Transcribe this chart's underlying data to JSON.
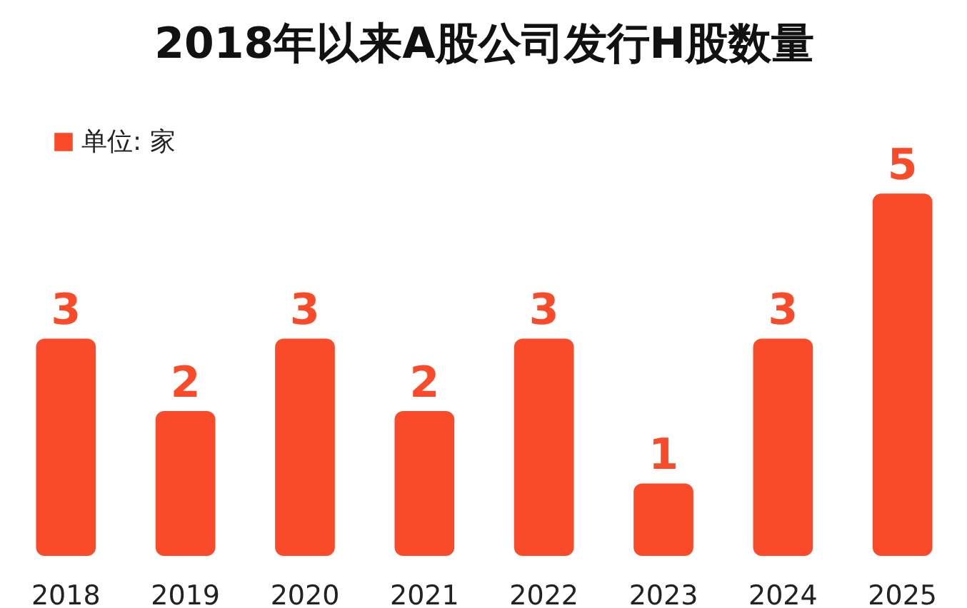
{
  "chart_data": {
    "type": "bar",
    "title": "2018年以来A股公司发行H股数量",
    "categories": [
      "2018",
      "2019",
      "2020",
      "2021",
      "2022",
      "2023",
      "2024",
      "2025"
    ],
    "series": [
      {
        "name": "单位: 家",
        "color": "#f94b2a",
        "values": [
          3,
          2,
          3,
          2,
          3,
          1,
          3,
          5
        ]
      }
    ],
    "data_labels": true,
    "legend": "top left",
    "grid": false,
    "tick_labels": "x"
  }
}
